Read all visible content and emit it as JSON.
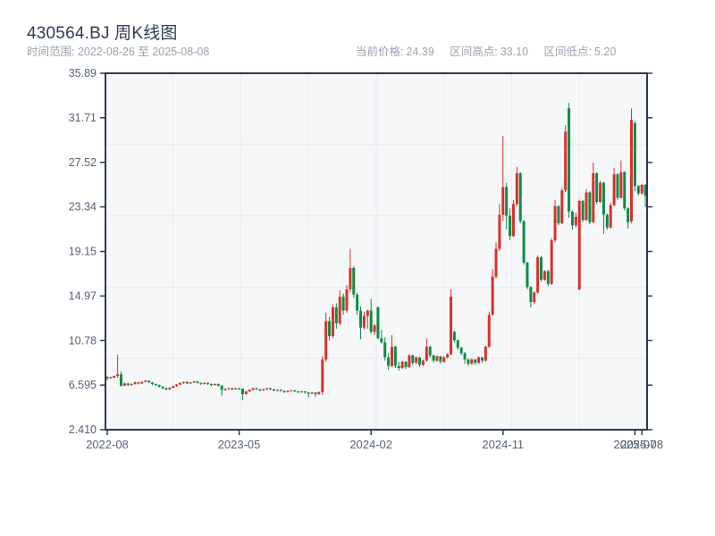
{
  "header": {
    "title": "430564.BJ 周K线图",
    "date_range_label": "时间范围: 2022-08-26 至 2025-08-08",
    "stats": [
      {
        "label": "当前价格:",
        "value": "24.39"
      },
      {
        "label": "区间高点:",
        "value": "33.10"
      },
      {
        "label": "区间低点:",
        "value": "5.20"
      }
    ]
  },
  "chart_data": {
    "type": "candlestick",
    "title": "430564.BJ 周K线图",
    "frequency": "weekly",
    "start_date": "2022-08-26",
    "end_date": "2025-08-08",
    "current_price": 24.39,
    "range_high": 33.1,
    "range_low": 5.2,
    "ylim": [
      2.41,
      35.89
    ],
    "y_tick_labels": [
      "35.89",
      "31.71",
      "27.52",
      "23.34",
      "19.15",
      "14.97",
      "10.78",
      "6.595",
      "2.410"
    ],
    "x_ticks": [
      {
        "label": "2022-08",
        "week": 0
      },
      {
        "label": "2023-05",
        "week": 38
      },
      {
        "label": "2024-02",
        "week": 76
      },
      {
        "label": "2024-11",
        "week": 114
      },
      {
        "label": "2025-07",
        "week": 152
      },
      {
        "label": "2025-08",
        "week": 154
      }
    ],
    "grid": {
      "vertical_fractions": [
        0.125,
        0.25,
        0.375,
        0.5,
        0.625,
        0.75,
        0.875
      ],
      "horizontal_fractions": [
        0.2,
        0.4,
        0.6,
        0.8
      ]
    },
    "colors": {
      "up": "#d8312a",
      "down": "#0e8c46",
      "axis": "#2c3a52",
      "grid": "#e8eaee",
      "plot_bg": "#f6f7f9",
      "tick_label": "#55627a",
      "title": "#2e3c50",
      "subtitle": "#99a2ad"
    },
    "candles_format": [
      "open",
      "high",
      "low",
      "close"
    ],
    "candles": [
      [
        7.2,
        7.45,
        7.05,
        7.35
      ],
      [
        7.35,
        7.4,
        7.15,
        7.3
      ],
      [
        7.3,
        7.5,
        7.25,
        7.45
      ],
      [
        7.45,
        9.45,
        7.3,
        7.6
      ],
      [
        7.6,
        7.9,
        6.45,
        6.55
      ],
      [
        6.55,
        6.85,
        6.5,
        6.75
      ],
      [
        6.75,
        6.8,
        6.5,
        6.6
      ],
      [
        6.6,
        6.8,
        6.55,
        6.7
      ],
      [
        6.7,
        6.95,
        6.65,
        6.85
      ],
      [
        6.85,
        6.9,
        6.65,
        6.75
      ],
      [
        6.75,
        6.95,
        6.7,
        6.9
      ],
      [
        6.9,
        7.1,
        6.85,
        7.0
      ],
      [
        7.0,
        7.05,
        6.8,
        6.85
      ],
      [
        6.85,
        6.9,
        6.6,
        6.7
      ],
      [
        6.7,
        6.75,
        6.5,
        6.6
      ],
      [
        6.6,
        6.65,
        6.35,
        6.45
      ],
      [
        6.45,
        6.5,
        6.2,
        6.3
      ],
      [
        6.3,
        6.4,
        6.1,
        6.2
      ],
      [
        6.2,
        6.4,
        6.15,
        6.35
      ],
      [
        6.35,
        6.55,
        6.3,
        6.5
      ],
      [
        6.5,
        6.7,
        6.45,
        6.65
      ],
      [
        6.65,
        6.85,
        6.6,
        6.8
      ],
      [
        6.8,
        6.95,
        6.7,
        6.9
      ],
      [
        6.9,
        6.95,
        6.7,
        6.75
      ],
      [
        6.75,
        6.9,
        6.7,
        6.85
      ],
      [
        6.85,
        7.0,
        6.8,
        6.95
      ],
      [
        6.95,
        7.0,
        6.75,
        6.8
      ],
      [
        6.8,
        6.85,
        6.6,
        6.7
      ],
      [
        6.7,
        6.85,
        6.65,
        6.8
      ],
      [
        6.8,
        6.85,
        6.6,
        6.7
      ],
      [
        6.7,
        6.75,
        6.5,
        6.6
      ],
      [
        6.6,
        6.75,
        6.55,
        6.7
      ],
      [
        6.7,
        6.75,
        6.45,
        6.55
      ],
      [
        6.55,
        6.6,
        5.55,
        6.15
      ],
      [
        6.15,
        6.3,
        6.05,
        6.25
      ],
      [
        6.25,
        6.35,
        6.15,
        6.3
      ],
      [
        6.3,
        6.35,
        6.1,
        6.2
      ],
      [
        6.2,
        6.35,
        6.15,
        6.3
      ],
      [
        6.3,
        6.35,
        6.15,
        6.25
      ],
      [
        6.25,
        6.3,
        5.2,
        5.75
      ],
      [
        5.75,
        6.05,
        5.7,
        6.0
      ],
      [
        6.0,
        6.2,
        5.95,
        6.15
      ],
      [
        6.15,
        6.35,
        6.1,
        6.3
      ],
      [
        6.3,
        6.35,
        6.15,
        6.2
      ],
      [
        6.2,
        6.25,
        6.0,
        6.1
      ],
      [
        6.1,
        6.25,
        6.05,
        6.2
      ],
      [
        6.2,
        6.35,
        6.15,
        6.3
      ],
      [
        6.3,
        6.35,
        6.15,
        6.2
      ],
      [
        6.2,
        6.25,
        6.0,
        6.1
      ],
      [
        6.1,
        6.2,
        6.0,
        6.15
      ],
      [
        6.15,
        6.2,
        6.0,
        6.05
      ],
      [
        6.05,
        6.1,
        5.85,
        5.95
      ],
      [
        5.95,
        6.1,
        5.9,
        6.05
      ],
      [
        6.05,
        6.15,
        6.0,
        6.1
      ],
      [
        6.1,
        6.15,
        5.95,
        6.0
      ],
      [
        6.0,
        6.05,
        5.85,
        5.95
      ],
      [
        5.95,
        6.05,
        5.9,
        6.0
      ],
      [
        6.0,
        6.05,
        5.8,
        5.9
      ],
      [
        5.9,
        5.95,
        5.45,
        5.8
      ],
      [
        5.8,
        5.95,
        5.75,
        5.9
      ],
      [
        5.9,
        5.95,
        5.5,
        5.75
      ],
      [
        5.75,
        6.0,
        5.7,
        5.95
      ],
      [
        5.95,
        9.3,
        5.7,
        9.0
      ],
      [
        9.0,
        13.4,
        8.8,
        12.6
      ],
      [
        12.6,
        13.0,
        10.8,
        11.2
      ],
      [
        11.2,
        14.2,
        11.0,
        13.9
      ],
      [
        13.9,
        14.3,
        11.9,
        12.4
      ],
      [
        12.4,
        15.5,
        12.2,
        14.9
      ],
      [
        14.9,
        15.2,
        13.2,
        13.6
      ],
      [
        13.6,
        16.0,
        13.4,
        15.6
      ],
      [
        15.6,
        19.4,
        15.3,
        17.6
      ],
      [
        17.6,
        17.8,
        14.8,
        15.1
      ],
      [
        15.1,
        15.3,
        13.2,
        13.6
      ],
      [
        13.6,
        14.0,
        10.9,
        12.0
      ],
      [
        12.0,
        13.5,
        11.8,
        13.1
      ],
      [
        13.1,
        13.7,
        11.9,
        13.6
      ],
      [
        13.6,
        14.7,
        11.4,
        11.6
      ],
      [
        11.6,
        12.3,
        11.3,
        12.2
      ],
      [
        13.9,
        14.0,
        10.9,
        11.0
      ],
      [
        11.0,
        11.8,
        10.5,
        10.6
      ],
      [
        10.6,
        11.1,
        8.9,
        9.2
      ],
      [
        9.2,
        9.6,
        8.0,
        8.4
      ],
      [
        8.4,
        11.3,
        8.3,
        10.2
      ],
      [
        10.2,
        10.3,
        8.2,
        8.4
      ],
      [
        8.4,
        8.8,
        7.95,
        8.2
      ],
      [
        8.2,
        8.9,
        8.1,
        8.8
      ],
      [
        8.8,
        8.85,
        8.1,
        8.3
      ],
      [
        8.3,
        9.5,
        8.2,
        9.4
      ],
      [
        9.4,
        9.45,
        8.5,
        8.7
      ],
      [
        8.7,
        9.3,
        8.6,
        9.2
      ],
      [
        9.2,
        9.25,
        8.3,
        8.5
      ],
      [
        8.5,
        9.0,
        8.4,
        8.9
      ],
      [
        8.9,
        11.0,
        8.8,
        10.2
      ],
      [
        10.2,
        10.3,
        9.2,
        9.4
      ],
      [
        9.4,
        9.45,
        8.7,
        8.9
      ],
      [
        8.9,
        9.4,
        8.8,
        9.3
      ],
      [
        9.3,
        9.35,
        8.6,
        8.8
      ],
      [
        8.8,
        9.3,
        8.7,
        9.2
      ],
      [
        9.2,
        9.6,
        9.1,
        9.5
      ],
      [
        9.5,
        15.6,
        9.4,
        14.9
      ],
      [
        11.6,
        11.7,
        10.6,
        10.8
      ],
      [
        10.8,
        10.9,
        9.9,
        10.1
      ],
      [
        10.1,
        10.2,
        9.4,
        9.6
      ],
      [
        9.6,
        9.7,
        8.6,
        9.0
      ],
      [
        9.0,
        9.1,
        8.4,
        8.6
      ],
      [
        8.6,
        9.1,
        8.5,
        9.0
      ],
      [
        9.0,
        9.05,
        8.5,
        8.7
      ],
      [
        8.7,
        9.3,
        8.6,
        9.2
      ],
      [
        9.2,
        9.25,
        8.7,
        8.9
      ],
      [
        8.9,
        10.3,
        8.8,
        10.2
      ],
      [
        10.2,
        13.5,
        10.1,
        13.2
      ],
      [
        13.2,
        17.5,
        13.1,
        16.8
      ],
      [
        16.8,
        20.0,
        16.6,
        19.4
      ],
      [
        19.4,
        23.6,
        19.2,
        22.6
      ],
      [
        22.6,
        30.0,
        22.0,
        25.2
      ],
      [
        25.2,
        25.6,
        21.2,
        22.5
      ],
      [
        22.5,
        23.2,
        20.2,
        20.6
      ],
      [
        20.6,
        24.0,
        20.5,
        23.6
      ],
      [
        23.6,
        27.1,
        23.4,
        26.5
      ],
      [
        26.5,
        26.6,
        21.8,
        22.0
      ],
      [
        22.0,
        22.1,
        17.9,
        18.1
      ],
      [
        18.1,
        18.2,
        15.6,
        15.8
      ],
      [
        15.8,
        15.9,
        13.9,
        14.4
      ],
      [
        14.4,
        15.4,
        14.2,
        15.3
      ],
      [
        15.3,
        18.8,
        15.2,
        18.6
      ],
      [
        18.6,
        18.7,
        16.3,
        16.5
      ],
      [
        16.5,
        17.4,
        16.4,
        17.3
      ],
      [
        17.3,
        17.4,
        15.9,
        16.1
      ],
      [
        16.1,
        20.4,
        16.0,
        20.2
      ],
      [
        20.2,
        24.0,
        20.0,
        23.4
      ],
      [
        23.4,
        23.5,
        21.6,
        21.8
      ],
      [
        21.8,
        25.1,
        21.7,
        24.9
      ],
      [
        24.9,
        31.0,
        24.7,
        30.4
      ],
      [
        32.6,
        33.1,
        22.3,
        22.9
      ],
      [
        22.9,
        23.0,
        21.2,
        21.6
      ],
      [
        21.6,
        22.8,
        21.4,
        22.4
      ],
      [
        15.6,
        24.0,
        15.5,
        23.9
      ],
      [
        23.9,
        24.0,
        21.9,
        22.1
      ],
      [
        22.1,
        25.0,
        22.0,
        24.7
      ],
      [
        24.7,
        24.8,
        21.7,
        21.9
      ],
      [
        21.9,
        27.5,
        21.8,
        26.5
      ],
      [
        26.5,
        26.6,
        23.6,
        23.8
      ],
      [
        23.8,
        25.8,
        23.7,
        25.6
      ],
      [
        25.6,
        25.7,
        20.8,
        22.6
      ],
      [
        22.6,
        22.7,
        21.2,
        21.4
      ],
      [
        21.4,
        23.7,
        21.3,
        23.5
      ],
      [
        23.5,
        27.0,
        23.4,
        26.4
      ],
      [
        26.4,
        26.5,
        24.0,
        24.2
      ],
      [
        24.2,
        27.7,
        24.1,
        26.6
      ],
      [
        26.6,
        26.7,
        23.0,
        23.2
      ],
      [
        23.2,
        23.3,
        21.3,
        21.9
      ],
      [
        22.0,
        32.6,
        21.8,
        31.5
      ],
      [
        31.2,
        31.4,
        24.8,
        25.3
      ],
      [
        25.3,
        25.4,
        24.4,
        24.6
      ],
      [
        24.6,
        25.5,
        24.5,
        25.4
      ],
      [
        25.4,
        25.5,
        23.3,
        24.39
      ]
    ]
  }
}
